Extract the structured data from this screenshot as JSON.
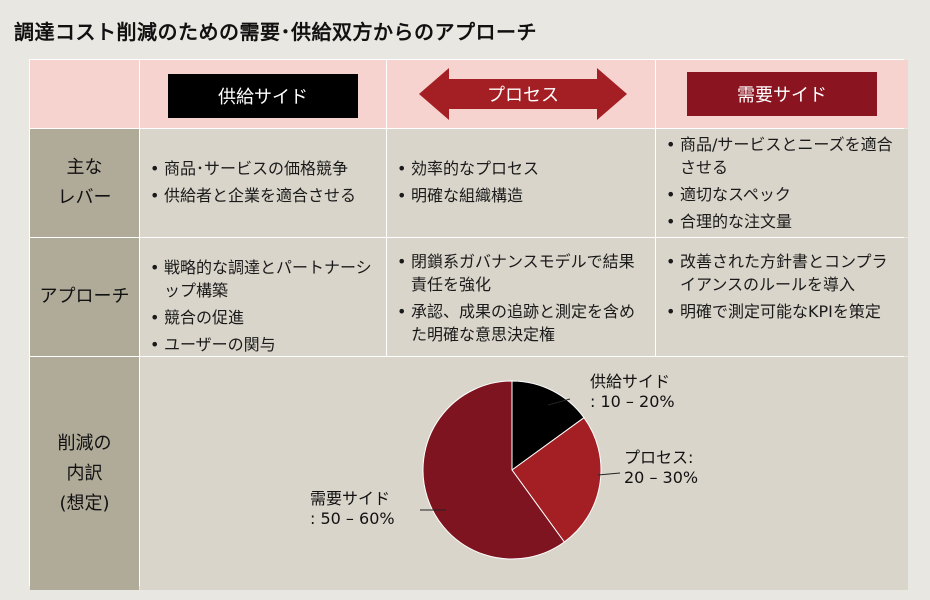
{
  "title": "調達コスト削減のための需要･供給双方からのアプローチ",
  "header": {
    "supply": "供給サイド",
    "process": "プロセス",
    "demand": "需要サイド"
  },
  "rows": {
    "levers": {
      "label_line1": "主な",
      "label_line2": "レバー",
      "supply": [
        "商品･サービスの価格競争",
        "供給者と企業を適合させる"
      ],
      "process": [
        "効率的なプロセス",
        "明確な組織構造"
      ],
      "demand": [
        "商品/サービスとニーズを適合させる",
        "適切なスペック",
        "合理的な注文量"
      ]
    },
    "approach": {
      "label": "アプローチ",
      "supply": [
        "戦略的な調達とパートナーシップ構築",
        "競合の促進",
        "ユーザーの関与"
      ],
      "process": [
        "閉鎖系ガバナンスモデルで結果責任を強化",
        "承認、成果の追跡と測定を含めた明確な意思決定権"
      ],
      "demand": [
        "改善された方針書とコンプライアンスのルールを導入",
        "明確で測定可能なKPIを策定"
      ]
    },
    "breakdown": {
      "label_line1": "削減の",
      "label_line2": "内訳",
      "label_line3": "(想定)"
    }
  },
  "chart_data": {
    "type": "pie",
    "slices": [
      {
        "name": "供給サイド",
        "label_line1": "供給サイド",
        "label_line2": ": 10 – 20%",
        "value": 15,
        "color": "#000000"
      },
      {
        "name": "プロセス",
        "label_line1": "プロセス:",
        "label_line2": "20 – 30%",
        "value": 25,
        "color": "#a31f24"
      },
      {
        "name": "需要サイド",
        "label_line1": "需要サイド",
        "label_line2": ": 50 – 60%",
        "value": 60,
        "color": "#7d1420"
      }
    ]
  },
  "colors": {
    "header_bg": "#f6d3cf",
    "lever_bg": "#b0aa99",
    "cell_bg": "#d9d5cb",
    "demand_box": "#8a1520",
    "process_arrow": "#a31f24"
  }
}
